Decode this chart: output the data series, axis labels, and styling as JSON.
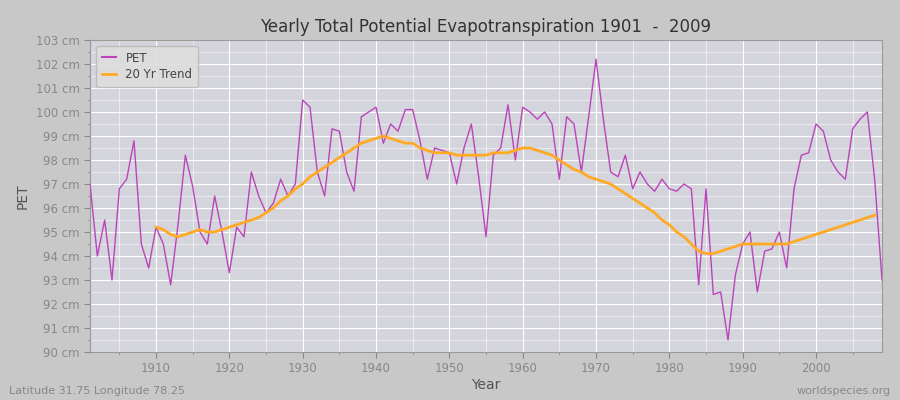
{
  "title": "Yearly Total Potential Evapotranspiration 1901  -  2009",
  "xlabel": "Year",
  "ylabel": "PET",
  "subtitle_left": "Latitude 31.75 Longitude 78.25",
  "subtitle_right": "worldspecies.org",
  "ylim": [
    90,
    103
  ],
  "ytick_labels": [
    "90 cm",
    "91 cm",
    "92 cm",
    "93 cm",
    "94 cm",
    "95 cm",
    "96 cm",
    "97 cm",
    "98 cm",
    "99 cm",
    "100 cm",
    "101 cm",
    "102 cm",
    "103 cm"
  ],
  "ytick_values": [
    90,
    91,
    92,
    93,
    94,
    95,
    96,
    97,
    98,
    99,
    100,
    101,
    102,
    103
  ],
  "pet_color": "#bb44bb",
  "trend_color": "#ffaa22",
  "fig_bg_color": "#c8c8c8",
  "plot_bg_color": "#d8d8e0",
  "grid_color": "#e8e8e8",
  "years": [
    1901,
    1902,
    1903,
    1904,
    1905,
    1906,
    1907,
    1908,
    1909,
    1910,
    1911,
    1912,
    1913,
    1914,
    1915,
    1916,
    1917,
    1918,
    1919,
    1920,
    1921,
    1922,
    1923,
    1924,
    1925,
    1926,
    1927,
    1928,
    1929,
    1930,
    1931,
    1932,
    1933,
    1934,
    1935,
    1936,
    1937,
    1938,
    1939,
    1940,
    1941,
    1942,
    1943,
    1944,
    1945,
    1946,
    1947,
    1948,
    1949,
    1950,
    1951,
    1952,
    1953,
    1954,
    1955,
    1956,
    1957,
    1958,
    1959,
    1960,
    1961,
    1962,
    1963,
    1964,
    1965,
    1966,
    1967,
    1968,
    1969,
    1970,
    1971,
    1972,
    1973,
    1974,
    1975,
    1976,
    1977,
    1978,
    1979,
    1980,
    1981,
    1982,
    1983,
    1984,
    1985,
    1986,
    1987,
    1988,
    1989,
    1990,
    1991,
    1992,
    1993,
    1994,
    1995,
    1996,
    1997,
    1998,
    1999,
    2000,
    2001,
    2002,
    2003,
    2004,
    2005,
    2006,
    2007,
    2008,
    2009
  ],
  "pet_values": [
    97.0,
    94.0,
    95.5,
    93.0,
    96.8,
    97.2,
    98.8,
    94.5,
    93.5,
    95.2,
    94.5,
    92.8,
    95.3,
    98.2,
    96.9,
    95.0,
    94.5,
    96.5,
    95.0,
    93.3,
    95.2,
    94.8,
    97.5,
    96.5,
    95.8,
    96.2,
    97.2,
    96.5,
    97.0,
    100.5,
    100.2,
    97.5,
    96.5,
    99.3,
    99.2,
    97.5,
    96.7,
    99.8,
    100.0,
    100.2,
    98.7,
    99.5,
    99.2,
    100.1,
    100.1,
    98.8,
    97.2,
    98.5,
    98.4,
    98.3,
    97.0,
    98.5,
    99.5,
    97.3,
    94.8,
    98.2,
    98.5,
    100.3,
    98.0,
    100.2,
    100.0,
    99.7,
    100.0,
    99.5,
    97.2,
    99.8,
    99.5,
    97.5,
    99.8,
    102.2,
    99.7,
    97.5,
    97.3,
    98.2,
    96.8,
    97.5,
    97.0,
    96.7,
    97.2,
    96.8,
    96.7,
    97.0,
    96.8,
    92.8,
    96.8,
    92.4,
    92.5,
    90.5,
    93.2,
    94.5,
    95.0,
    92.5,
    94.2,
    94.3,
    95.0,
    93.5,
    96.8,
    98.2,
    98.3,
    99.5,
    99.2,
    98.0,
    97.5,
    97.2,
    99.3,
    99.7,
    100.0,
    97.2,
    93.0
  ],
  "trend_values": [
    null,
    null,
    null,
    null,
    null,
    null,
    null,
    null,
    null,
    95.2,
    95.1,
    94.9,
    94.8,
    94.9,
    95.0,
    95.1,
    95.0,
    95.0,
    95.1,
    95.2,
    95.3,
    95.4,
    95.5,
    95.6,
    95.8,
    96.0,
    96.3,
    96.5,
    96.8,
    97.0,
    97.3,
    97.5,
    97.7,
    97.9,
    98.1,
    98.3,
    98.5,
    98.7,
    98.8,
    98.9,
    99.0,
    98.9,
    98.8,
    98.7,
    98.7,
    98.5,
    98.4,
    98.3,
    98.3,
    98.3,
    98.2,
    98.2,
    98.2,
    98.2,
    98.2,
    98.3,
    98.3,
    98.3,
    98.4,
    98.5,
    98.5,
    98.4,
    98.3,
    98.2,
    98.0,
    97.8,
    97.6,
    97.5,
    97.3,
    97.2,
    97.1,
    97.0,
    96.8,
    96.6,
    96.4,
    96.2,
    96.0,
    95.8,
    95.5,
    95.3,
    95.0,
    94.8,
    94.5,
    94.2,
    94.1,
    94.1,
    94.2,
    94.3,
    94.4,
    94.5,
    94.5,
    94.5,
    94.5,
    94.5,
    94.5,
    94.5,
    94.6,
    94.7,
    94.8,
    94.9,
    95.0,
    95.1,
    95.2,
    95.3,
    95.4,
    95.5,
    95.6,
    95.7
  ],
  "xtick_values": [
    1910,
    1920,
    1930,
    1940,
    1950,
    1960,
    1970,
    1980,
    1990,
    2000
  ],
  "xlim": [
    1901,
    2009
  ]
}
